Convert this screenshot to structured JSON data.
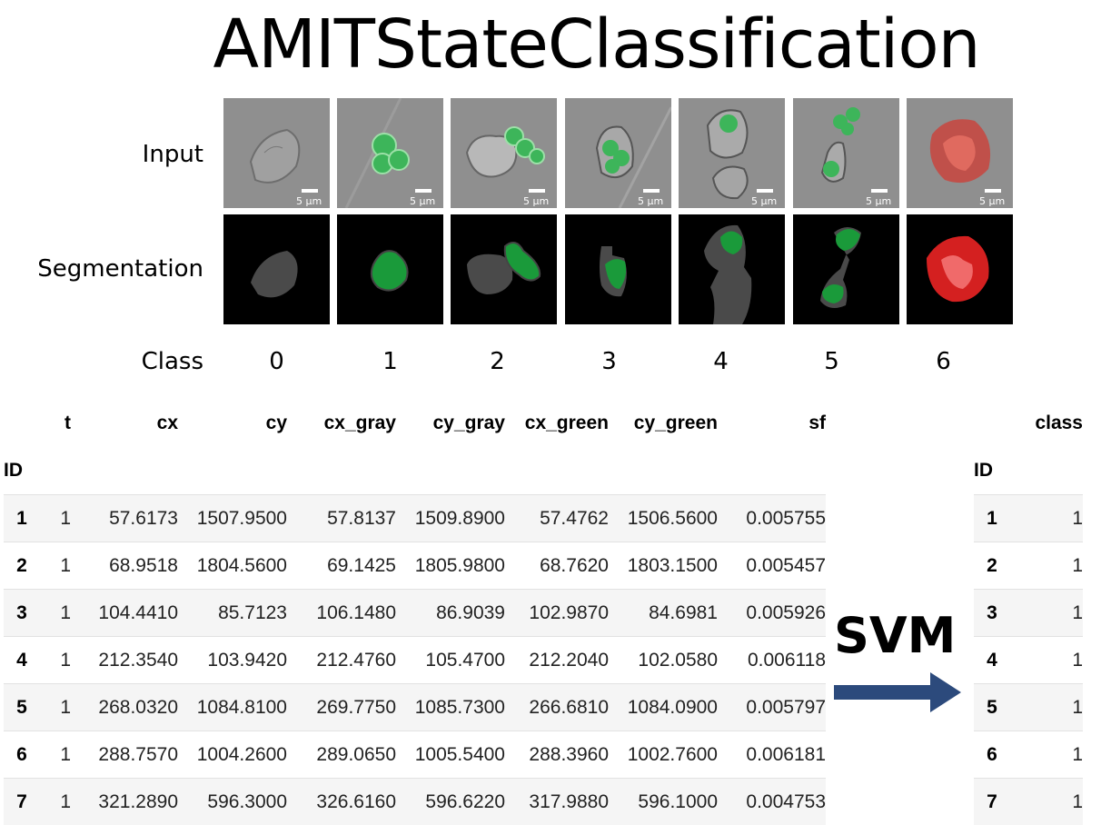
{
  "title": "AMITStateClassification",
  "row_labels": {
    "input": "Input",
    "segmentation": "Segmentation",
    "class": "Class"
  },
  "scale_bar_label": "5 µm",
  "classes": [
    "0",
    "1",
    "2",
    "3",
    "4",
    "5",
    "6"
  ],
  "features_table": {
    "columns": [
      "t",
      "cx",
      "cy",
      "cx_gray",
      "cy_gray",
      "cx_green",
      "cy_green",
      "sf"
    ],
    "index_name": "ID",
    "rows": [
      [
        "1",
        "1",
        "57.6173",
        "1507.9500",
        "57.8137",
        "1509.8900",
        "57.4762",
        "1506.5600",
        "0.005755"
      ],
      [
        "2",
        "1",
        "68.9518",
        "1804.5600",
        "69.1425",
        "1805.9800",
        "68.7620",
        "1803.1500",
        "0.005457"
      ],
      [
        "3",
        "1",
        "104.4410",
        "85.7123",
        "106.1480",
        "86.9039",
        "102.9870",
        "84.6981",
        "0.005926"
      ],
      [
        "4",
        "1",
        "212.3540",
        "103.9420",
        "212.4760",
        "105.4700",
        "212.2040",
        "102.0580",
        "0.006118"
      ],
      [
        "5",
        "1",
        "268.0320",
        "1084.8100",
        "269.7750",
        "1085.7300",
        "266.6810",
        "1084.0900",
        "0.005797"
      ],
      [
        "6",
        "1",
        "288.7570",
        "1004.2600",
        "289.0650",
        "1005.5400",
        "288.3960",
        "1002.7600",
        "0.006181"
      ],
      [
        "7",
        "1",
        "321.2890",
        "596.3000",
        "326.6160",
        "596.6220",
        "317.9880",
        "596.1000",
        "0.004753"
      ]
    ]
  },
  "method_label": "SVM",
  "class_table": {
    "column": "class",
    "index_name": "ID",
    "rows": [
      [
        "1",
        "1"
      ],
      [
        "2",
        "1"
      ],
      [
        "3",
        "1"
      ],
      [
        "4",
        "1"
      ],
      [
        "5",
        "1"
      ],
      [
        "6",
        "1"
      ],
      [
        "7",
        "1"
      ]
    ]
  },
  "colors": {
    "arrow": "#2c4a7c",
    "cell_gray": "#4a4a4a",
    "cell_green": "#1a9a3a",
    "cell_red": "#d42020",
    "input_bg": "#8f8f8f"
  }
}
